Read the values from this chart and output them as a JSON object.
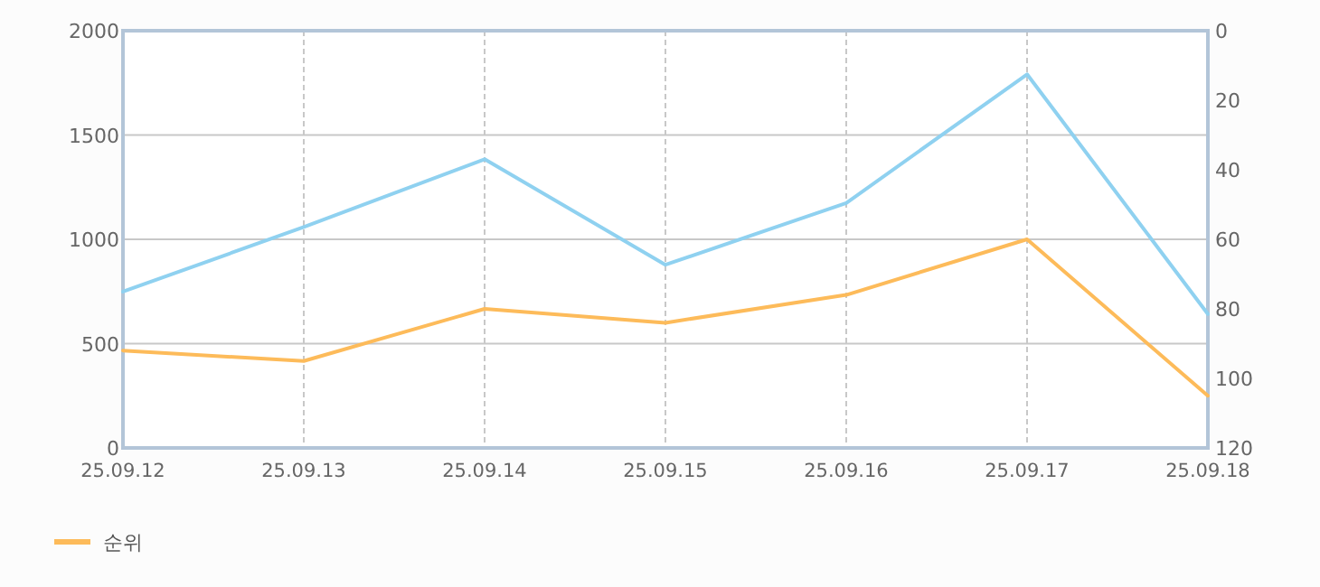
{
  "chart_data": {
    "type": "line",
    "categories": [
      "25.09.12",
      "25.09.13",
      "25.09.14",
      "25.09.15",
      "25.09.16",
      "25.09.17",
      "25.09.18"
    ],
    "series": [
      {
        "color": "#8fd1f0",
        "values": [
          749,
          1059,
          1384,
          878,
          1174,
          1791,
          642
        ]
      },
      {
        "name": "순위",
        "color": "#fdbb5a",
        "axis": "y2",
        "values": [
          92,
          95,
          80,
          84,
          76,
          60,
          105
        ]
      }
    ],
    "ylim": [
      0,
      2000
    ],
    "yticks": [
      0,
      500,
      1000,
      1500,
      2000
    ],
    "y2lim": [
      120,
      0
    ],
    "y2ticks": [
      0,
      20,
      40,
      60,
      80,
      100,
      120
    ],
    "grid": true,
    "legend": "bottom left",
    "marker": "none",
    "line_style": "solid"
  }
}
